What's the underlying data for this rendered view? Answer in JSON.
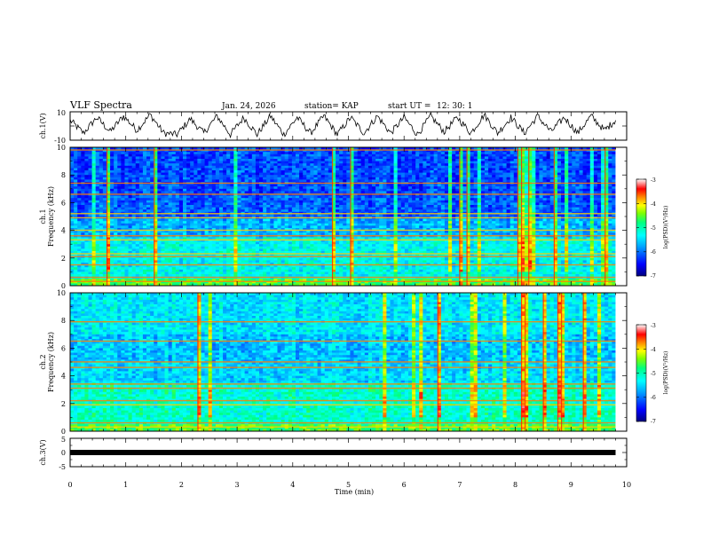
{
  "header": {
    "title": "VLF Spectra",
    "date": "Jan. 24, 2026",
    "station": "station= KAP",
    "start_label": "start  UT  =",
    "start_time": "12: 30: 1"
  },
  "chart_data": [
    {
      "type": "line",
      "panel": "ch1-waveform",
      "ylabel": "ch.1(V)",
      "ylim": [
        -10,
        10
      ],
      "yticks": [
        "10",
        "-10"
      ],
      "xlim": [
        0,
        10
      ],
      "description_series": "oscillating voltage, period about 0.48 min, amplitude roughly -6 to 9 V",
      "x": [
        0,
        0.24,
        0.48,
        0.72,
        0.96,
        1.2,
        1.44,
        1.68,
        1.92,
        2.16,
        2.4,
        2.64,
        2.88,
        3.12,
        3.36,
        3.6,
        3.84,
        4.08,
        4.32,
        4.56,
        4.8,
        5.04,
        5.28,
        5.52,
        5.76,
        6.0,
        6.24,
        6.48,
        6.72,
        6.96,
        7.2,
        7.44,
        7.68,
        7.92,
        8.16,
        8.4,
        8.64,
        8.88,
        9.12,
        9.36,
        9.6,
        9.8
      ],
      "y": [
        4,
        -5,
        6,
        -4,
        7,
        -3,
        8,
        -5,
        -6,
        5,
        -5,
        7,
        -6,
        6,
        -6,
        7,
        -6,
        6,
        -5,
        7,
        -6,
        6,
        -5,
        7,
        -5,
        6,
        -6,
        7,
        -4,
        6,
        -5,
        8,
        -5,
        6,
        -5,
        7,
        -4,
        6,
        -5,
        7,
        -3,
        4
      ]
    },
    {
      "type": "heatmap",
      "panel": "ch1-spectrogram",
      "ylabel_line1": "ch.1",
      "ylabel_line2": "Frequency (kHz)",
      "ylim": [
        0,
        10
      ],
      "yticks": [
        "0",
        "2",
        "4",
        "6",
        "8",
        "10"
      ],
      "xlim": [
        0,
        10
      ],
      "data_end_min": 9.8,
      "colorbar": {
        "label": "log(PSD)(V²/Hz)",
        "range": [
          -7,
          -3
        ],
        "ticks": [
          "-3",
          "-4",
          "-5",
          "-6",
          "-7"
        ]
      },
      "band_levels": [
        {
          "f_low": 0,
          "f_high": 0.5,
          "level": -4.6
        },
        {
          "f_low": 0.5,
          "f_high": 3.5,
          "level": -5.3
        },
        {
          "f_low": 3.5,
          "f_high": 4.8,
          "level": -5.7
        },
        {
          "f_low": 4.8,
          "f_high": 6.5,
          "level": -6.1
        },
        {
          "f_low": 6.5,
          "f_high": 10,
          "level": -6.2
        }
      ],
      "line_freqs_khz": [
        0.3,
        0.6,
        1.5,
        2.1,
        2.3,
        3.3,
        3.6,
        4.0,
        4.9,
        5.2,
        6.6,
        7.4,
        9.8
      ]
    },
    {
      "type": "heatmap",
      "panel": "ch2-spectrogram",
      "ylabel_line1": "ch.2",
      "ylabel_line2": "Frequency (kHz)",
      "ylim": [
        0,
        10
      ],
      "yticks": [
        "0",
        "2",
        "4",
        "6",
        "8",
        "10"
      ],
      "xlim": [
        0,
        10
      ],
      "data_end_min": 9.8,
      "colorbar": {
        "label": "log(PSD)(V²/Hz)",
        "range": [
          -7,
          -3
        ],
        "ticks": [
          "-3",
          "-4",
          "-5",
          "-6",
          "-7"
        ]
      },
      "band_levels": [
        {
          "f_low": 0,
          "f_high": 0.5,
          "level": -4.6
        },
        {
          "f_low": 0.5,
          "f_high": 3.5,
          "level": -5.1
        },
        {
          "f_low": 3.5,
          "f_high": 5.0,
          "level": -5.5
        },
        {
          "f_low": 5.0,
          "f_high": 7.0,
          "level": -5.6
        },
        {
          "f_low": 7.0,
          "f_high": 10,
          "level": -5.4
        }
      ],
      "line_freqs_khz": [
        0.3,
        0.6,
        1.9,
        2.2,
        3.1,
        3.4,
        4.6,
        5.0,
        6.5,
        7.9
      ]
    },
    {
      "type": "line",
      "panel": "ch3-waveform",
      "ylabel": "ch.3(V)",
      "ylim": [
        -5,
        5
      ],
      "yticks": [
        "5",
        "0",
        "-5"
      ],
      "xlim": [
        0,
        10
      ],
      "x": [
        0,
        9.8
      ],
      "y": [
        0,
        0
      ],
      "xlabel": "Time  (min)",
      "xticks": [
        "0",
        "1",
        "2",
        "3",
        "4",
        "5",
        "6",
        "7",
        "8",
        "9",
        "10"
      ]
    }
  ],
  "colors": {
    "colormap": [
      "#000080",
      "#0000ff",
      "#00a0ff",
      "#00ffff",
      "#00ff80",
      "#80ff00",
      "#ffff00",
      "#ff8000",
      "#ff0000",
      "#ffffff"
    ]
  }
}
